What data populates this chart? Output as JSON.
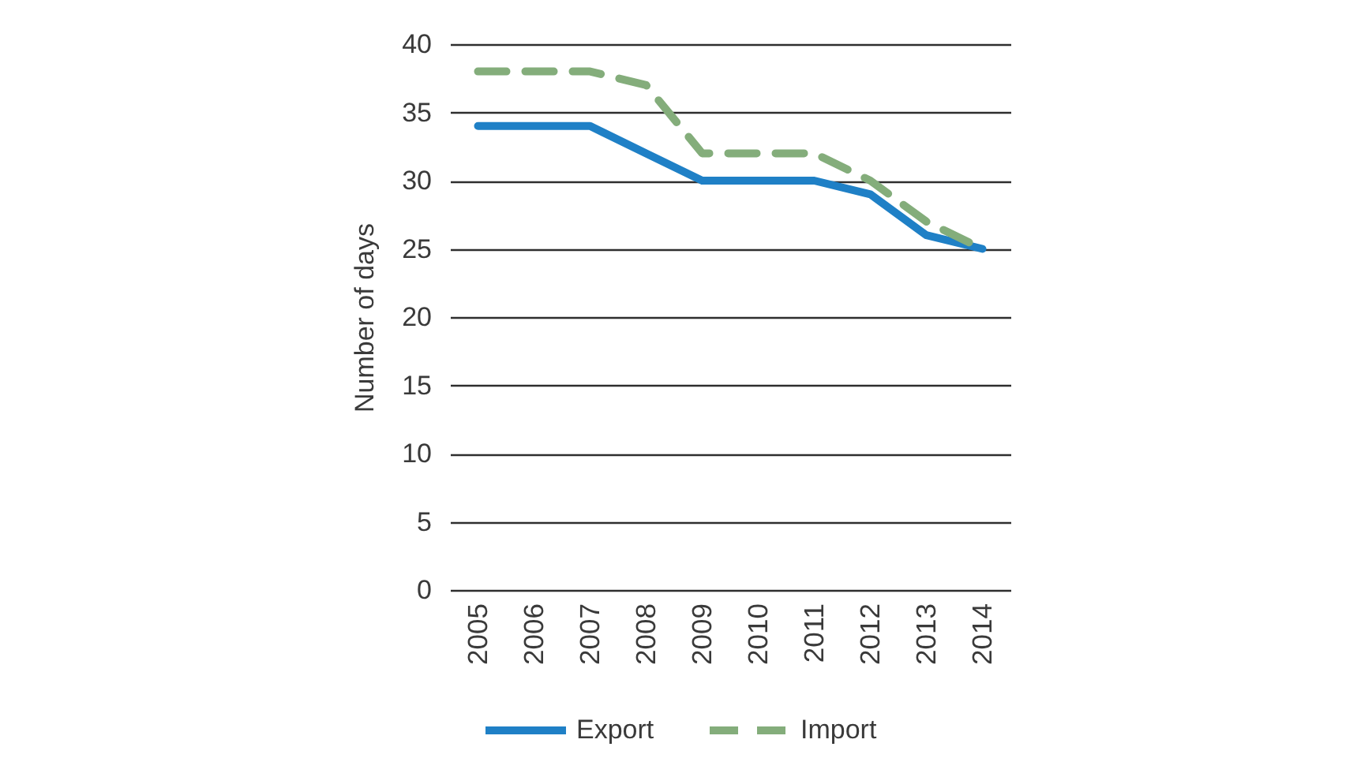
{
  "chart_data": {
    "type": "line",
    "ylabel": "Number of days",
    "categories": [
      "2005",
      "2006",
      "2007",
      "2008",
      "2009",
      "2010",
      "2011",
      "2012",
      "2013",
      "2014"
    ],
    "series": [
      {
        "name": "Export",
        "color": "#1f80c6",
        "line_style": "solid",
        "values": [
          34,
          34,
          34,
          32,
          30,
          30,
          30,
          29,
          26,
          25
        ]
      },
      {
        "name": "Import",
        "color": "#84ad7b",
        "line_style": "dashed",
        "values": [
          38,
          38,
          38,
          37,
          32,
          32,
          32,
          30,
          27,
          25
        ]
      }
    ],
    "ylim": [
      0,
      40
    ],
    "yticks": [
      0,
      5,
      10,
      15,
      20,
      25,
      30,
      35,
      40
    ],
    "grid": "y",
    "legend": "bottom"
  }
}
